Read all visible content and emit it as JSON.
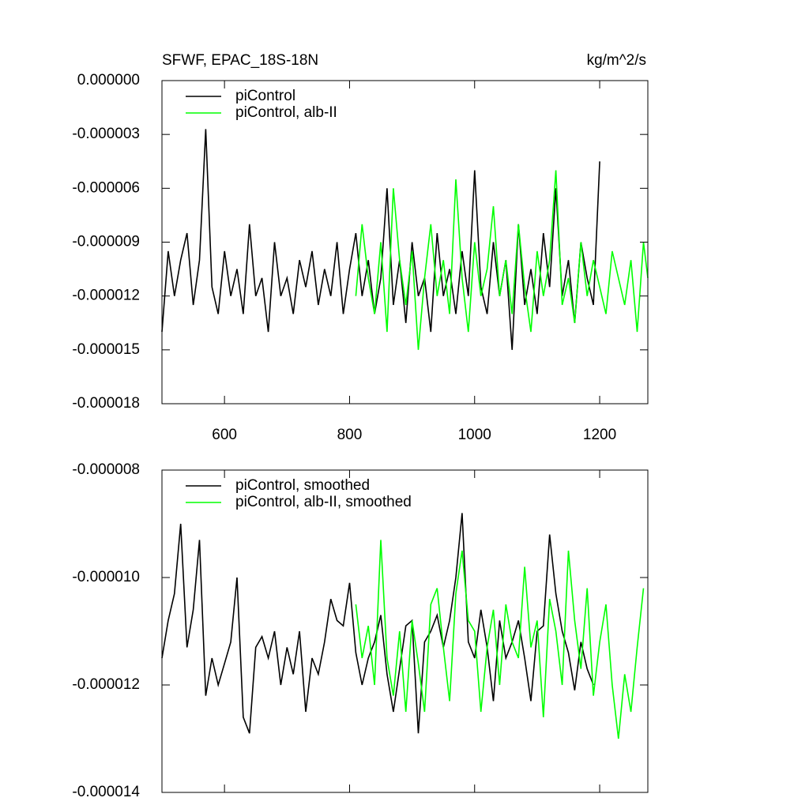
{
  "chart_data": [
    {
      "type": "line",
      "title": "SFWF, EPAC_18S-18N",
      "units_label": "kg/m^2/s",
      "xlim": [
        500,
        1277
      ],
      "ylim": [
        -1.8e-05,
        0
      ],
      "xticks": [
        600,
        800,
        1000,
        1200
      ],
      "show_xtick_labels": true,
      "yticks": [
        {
          "value": 0,
          "label": "0.000000"
        },
        {
          "value": -3e-06,
          "label": "-0.000003"
        },
        {
          "value": -6e-06,
          "label": "-0.000006"
        },
        {
          "value": -9e-06,
          "label": "-0.000009"
        },
        {
          "value": -1.2e-05,
          "label": "-0.000012"
        },
        {
          "value": -1.5e-05,
          "label": "-0.000015"
        },
        {
          "value": -1.8e-05,
          "label": "-0.000018"
        }
      ],
      "legend": "top-left",
      "series": [
        {
          "name": "piControl",
          "color": "#000000",
          "x": [
            500,
            510,
            520,
            530,
            540,
            550,
            560,
            570,
            580,
            590,
            600,
            610,
            620,
            630,
            640,
            650,
            660,
            670,
            680,
            690,
            700,
            710,
            720,
            730,
            740,
            750,
            760,
            770,
            780,
            790,
            800,
            810,
            820,
            830,
            840,
            850,
            860,
            870,
            880,
            890,
            900,
            910,
            920,
            930,
            940,
            950,
            960,
            970,
            980,
            990,
            1000,
            1010,
            1020,
            1030,
            1040,
            1050,
            1060,
            1070,
            1080,
            1090,
            1100,
            1110,
            1120,
            1130,
            1140,
            1150,
            1160,
            1170,
            1180,
            1190,
            1200
          ],
          "values": [
            -1.4e-05,
            -9.5e-06,
            -1.2e-05,
            -1e-05,
            -8.5e-06,
            -1.25e-05,
            -1e-05,
            -2.7e-06,
            -1.15e-05,
            -1.3e-05,
            -9.5e-06,
            -1.2e-05,
            -1.05e-05,
            -1.3e-05,
            -8e-06,
            -1.2e-05,
            -1.1e-05,
            -1.4e-05,
            -9e-06,
            -1.2e-05,
            -1.1e-05,
            -1.3e-05,
            -1e-05,
            -1.15e-05,
            -9.5e-06,
            -1.25e-05,
            -1.05e-05,
            -1.2e-05,
            -9e-06,
            -1.3e-05,
            -1.05e-05,
            -8.5e-06,
            -1.2e-05,
            -1e-05,
            -1.3e-05,
            -1.1e-05,
            -6e-06,
            -1.25e-05,
            -1e-05,
            -1.35e-05,
            -9e-06,
            -1.2e-05,
            -1.1e-05,
            -1.4e-05,
            -8.5e-06,
            -1.2e-05,
            -1.05e-05,
            -1.3e-05,
            -9.5e-06,
            -1.2e-05,
            -5e-06,
            -1.15e-05,
            -1.3e-05,
            -9e-06,
            -1.2e-05,
            -1e-05,
            -1.5e-05,
            -8e-06,
            -1.25e-05,
            -1.05e-05,
            -1.3e-05,
            -8.5e-06,
            -1.15e-05,
            -6e-06,
            -1.2e-05,
            -1e-05,
            -1.35e-05,
            -9e-06,
            -1.1e-05,
            -1.25e-05,
            -4.5e-06
          ]
        },
        {
          "name": "piControl, alb-II",
          "color": "#00ff00",
          "x": [
            810,
            820,
            830,
            840,
            850,
            860,
            870,
            880,
            890,
            900,
            910,
            920,
            930,
            940,
            950,
            960,
            970,
            980,
            990,
            1000,
            1010,
            1020,
            1030,
            1040,
            1050,
            1060,
            1070,
            1080,
            1090,
            1100,
            1110,
            1120,
            1130,
            1140,
            1150,
            1160,
            1170,
            1180,
            1190,
            1200,
            1210,
            1220,
            1230,
            1240,
            1250,
            1260,
            1270,
            1277
          ],
          "values": [
            -1.2e-05,
            -8e-06,
            -1.1e-05,
            -1.3e-05,
            -9e-06,
            -1.4e-05,
            -6e-06,
            -1e-05,
            -1.25e-05,
            -9.5e-06,
            -1.5e-05,
            -1.1e-05,
            -8e-06,
            -1.2e-05,
            -1e-05,
            -1.3e-05,
            -5.5e-06,
            -1.1e-05,
            -1.4e-05,
            -9e-06,
            -1.2e-05,
            -1.05e-05,
            -7e-06,
            -1.2e-05,
            -1e-05,
            -1.3e-05,
            -8e-06,
            -1.15e-05,
            -1.4e-05,
            -9.5e-06,
            -1.2e-05,
            -1e-05,
            -5e-06,
            -1.25e-05,
            -1.1e-05,
            -1.35e-05,
            -9e-06,
            -1.2e-05,
            -1e-05,
            -1.15e-05,
            -1.3e-05,
            -9.5e-06,
            -1.1e-05,
            -1.25e-05,
            -1e-05,
            -1.4e-05,
            -9e-06,
            -1.1e-05
          ]
        }
      ]
    },
    {
      "type": "line",
      "xlim": [
        500,
        1277
      ],
      "ylim": [
        -1.4e-05,
        -8e-06
      ],
      "xticks": [
        600,
        800,
        1000,
        1200
      ],
      "show_xtick_labels": false,
      "yticks": [
        {
          "value": -8e-06,
          "label": "-0.000008"
        },
        {
          "value": -1e-05,
          "label": "-0.000010"
        },
        {
          "value": -1.2e-05,
          "label": "-0.000012"
        },
        {
          "value": -1.4e-05,
          "label": "-0.000014"
        }
      ],
      "legend": "top-left",
      "series": [
        {
          "name": "piControl, smoothed",
          "color": "#000000",
          "x": [
            500,
            510,
            520,
            530,
            540,
            550,
            560,
            570,
            580,
            590,
            600,
            610,
            620,
            630,
            640,
            650,
            660,
            670,
            680,
            690,
            700,
            710,
            720,
            730,
            740,
            750,
            760,
            770,
            780,
            790,
            800,
            810,
            820,
            830,
            840,
            850,
            860,
            870,
            880,
            890,
            900,
            910,
            920,
            930,
            940,
            950,
            960,
            970,
            980,
            990,
            1000,
            1010,
            1020,
            1030,
            1040,
            1050,
            1060,
            1070,
            1080,
            1090,
            1100,
            1110,
            1120,
            1130,
            1140,
            1150,
            1160,
            1170,
            1180,
            1190
          ],
          "values": [
            -1.15e-05,
            -1.08e-05,
            -1.03e-05,
            -9e-06,
            -1.13e-05,
            -1.06e-05,
            -9.3e-06,
            -1.22e-05,
            -1.15e-05,
            -1.2e-05,
            -1.16e-05,
            -1.12e-05,
            -1e-05,
            -1.26e-05,
            -1.29e-05,
            -1.13e-05,
            -1.11e-05,
            -1.15e-05,
            -1.1e-05,
            -1.2e-05,
            -1.13e-05,
            -1.18e-05,
            -1.1e-05,
            -1.25e-05,
            -1.15e-05,
            -1.18e-05,
            -1.12e-05,
            -1.04e-05,
            -1.08e-05,
            -1.09e-05,
            -1.01e-05,
            -1.14e-05,
            -1.2e-05,
            -1.15e-05,
            -1.12e-05,
            -1.07e-05,
            -1.18e-05,
            -1.25e-05,
            -1.17e-05,
            -1.09e-05,
            -1.08e-05,
            -1.29e-05,
            -1.12e-05,
            -1.1e-05,
            -1.07e-05,
            -1.13e-05,
            -1.08e-05,
            -1e-05,
            -8.8e-06,
            -1.12e-05,
            -1.15e-05,
            -1.06e-05,
            -1.13e-05,
            -1.23e-05,
            -1.08e-05,
            -1.15e-05,
            -1.12e-05,
            -1.08e-05,
            -1.15e-05,
            -1.23e-05,
            -1.1e-05,
            -1.09e-05,
            -9.2e-06,
            -1.03e-05,
            -1.1e-05,
            -1.14e-05,
            -1.21e-05,
            -1.12e-05,
            -1.17e-05,
            -1.2e-05
          ]
        },
        {
          "name": "piControl, alb-II, smoothed",
          "color": "#00ff00",
          "x": [
            810,
            820,
            830,
            840,
            850,
            860,
            870,
            880,
            890,
            900,
            910,
            920,
            930,
            940,
            950,
            960,
            970,
            980,
            990,
            1000,
            1010,
            1020,
            1030,
            1040,
            1050,
            1060,
            1070,
            1080,
            1090,
            1100,
            1110,
            1120,
            1130,
            1140,
            1150,
            1160,
            1170,
            1180,
            1190,
            1200,
            1210,
            1220,
            1230,
            1240,
            1250,
            1260,
            1270
          ],
          "values": [
            -1.05e-05,
            -1.15e-05,
            -1.09e-05,
            -1.2e-05,
            -9.3e-06,
            -1.15e-05,
            -1.22e-05,
            -1.1e-05,
            -1.25e-05,
            -1.08e-05,
            -1.16e-05,
            -1.25e-05,
            -1.05e-05,
            -1.02e-05,
            -1.13e-05,
            -1.23e-05,
            -1.03e-05,
            -9.5e-06,
            -1.08e-05,
            -1.1e-05,
            -1.25e-05,
            -1.13e-05,
            -1.06e-05,
            -1.2e-05,
            -1.05e-05,
            -1.12e-05,
            -1.15e-05,
            -9.8e-06,
            -1.13e-05,
            -1.08e-05,
            -1.26e-05,
            -1.04e-05,
            -1.1e-05,
            -1.2e-05,
            -9.5e-06,
            -1.08e-05,
            -1.17e-05,
            -1.02e-05,
            -1.22e-05,
            -1.12e-05,
            -1.05e-05,
            -1.2e-05,
            -1.3e-05,
            -1.18e-05,
            -1.25e-05,
            -1.13e-05,
            -1.02e-05
          ]
        }
      ]
    }
  ]
}
